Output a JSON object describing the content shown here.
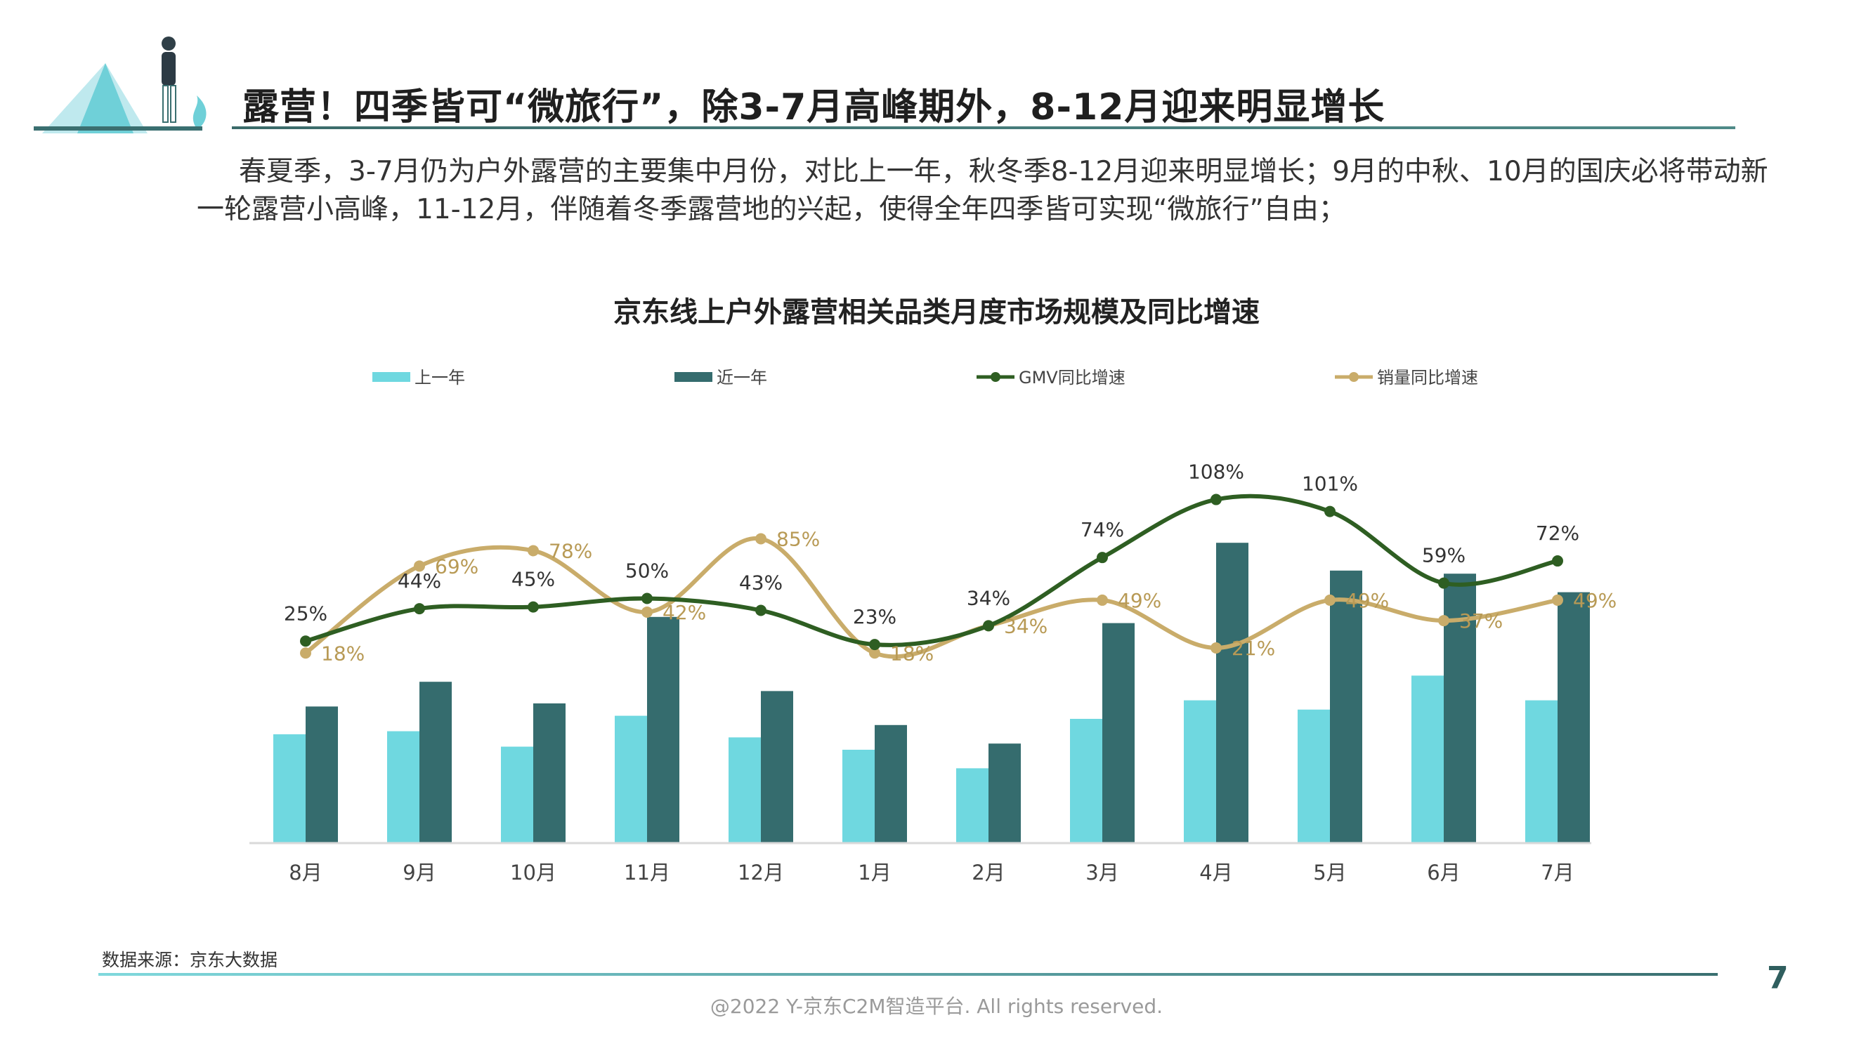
{
  "header": {
    "title": "露营！四季皆可“微旅行”，除3-7月高峰期外，8-12月迎来明显增长"
  },
  "intro": {
    "text": "春夏季，3-7月仍为户外露营的主要集中月份，对比上一年，秋冬季8-12月迎来明显增长；9月的中秋、10月的国庆必将带动新一轮露营小高峰，11-12月，伴随着冬季露营地的兴起，使得全年四季皆可实现“微旅行”自由；"
  },
  "chart_data": {
    "type": "bar",
    "title": "京东线上户外露营相关品类月度市场规模及同比增速",
    "categories": [
      "8月",
      "9月",
      "10月",
      "11月",
      "12月",
      "1月",
      "2月",
      "3月",
      "4月",
      "5月",
      "6月",
      "7月"
    ],
    "series": [
      {
        "name": "上一年",
        "type": "bar",
        "color": "#6fd8e0",
        "values": [
          35,
          36,
          31,
          41,
          34,
          30,
          24,
          40,
          46,
          43,
          54,
          46
        ]
      },
      {
        "name": "近一年",
        "type": "bar",
        "color": "#356c6e",
        "values": [
          44,
          52,
          45,
          73,
          49,
          38,
          32,
          71,
          97,
          88,
          87,
          81
        ]
      },
      {
        "name": "GMV同比增速",
        "type": "line",
        "color": "#2e5e22",
        "values": [
          25,
          44,
          45,
          50,
          43,
          23,
          34,
          74,
          108,
          101,
          59,
          72
        ],
        "labels": [
          "25%",
          "44%",
          "45%",
          "50%",
          "43%",
          "23%",
          "34%",
          "74%",
          "108%",
          "101%",
          "59%",
          "72%"
        ]
      },
      {
        "name": "销量同比增速",
        "type": "line",
        "color": "#c9ac6a",
        "values": [
          18,
          69,
          78,
          42,
          85,
          18,
          34,
          49,
          21,
          49,
          37,
          49
        ],
        "labels": [
          "18%",
          "69%",
          "78%",
          "42%",
          "85%",
          "18%",
          "34%",
          "49%",
          "21%",
          "49%",
          "37%",
          "49%"
        ]
      }
    ],
    "legend_position": "top",
    "grid": false
  },
  "footer": {
    "source": "数据来源：京东大数据",
    "page": "7",
    "copyright": "@2022 Y-京东C2M智造平台. All rights reserved."
  }
}
